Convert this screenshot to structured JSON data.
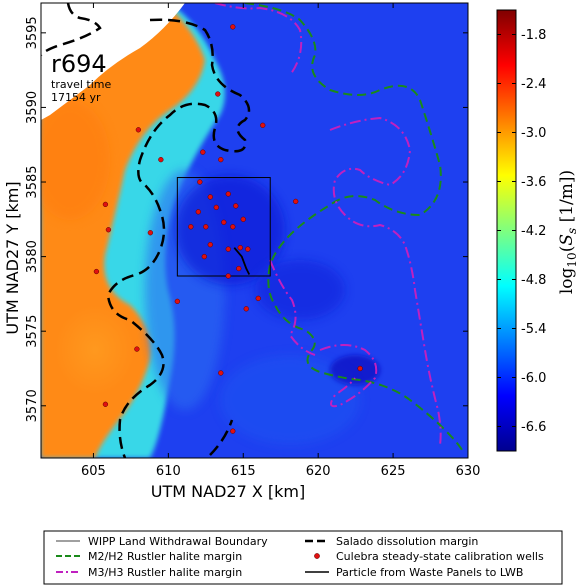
{
  "chart_data": {
    "type": "heatmap",
    "title": "",
    "xlabel": "UTM NAD27 X [km]",
    "ylabel": "UTM NAD27 Y [km]",
    "xlim": [
      601.5,
      630
    ],
    "ylim": [
      3566.5,
      3597
    ],
    "xticks": [
      "605",
      "610",
      "615",
      "620",
      "625",
      "630"
    ],
    "yticks": [
      "3570",
      "3575",
      "3580",
      "3585",
      "3590",
      "3595"
    ],
    "colorbar": {
      "label": "log10(Ss [1/m])",
      "range": [
        -6.9,
        -1.5
      ],
      "ticks": [
        "-1.8",
        "-2.4",
        "-3.0",
        "-3.6",
        "-4.2",
        "-4.8",
        "-5.4",
        "-6.0",
        "-6.6"
      ],
      "colormap": "jet"
    },
    "annotation": {
      "realization": "r694",
      "travel_time_label": "travel time",
      "travel_time_value": "17154 yr"
    },
    "wipp_boundary_box": {
      "x": [
        610.6,
        616.8
      ],
      "y": [
        3578.7,
        3585.3
      ]
    },
    "calibration_wells": [
      [
        608.0,
        3588.5
      ],
      [
        609.5,
        3586.5
      ],
      [
        605.8,
        3583.5
      ],
      [
        606.0,
        3581.8
      ],
      [
        608.8,
        3581.6
      ],
      [
        605.2,
        3579.0
      ],
      [
        607.9,
        3573.8
      ],
      [
        605.8,
        3570.1
      ],
      [
        610.6,
        3577.0
      ],
      [
        612.1,
        3585.0
      ],
      [
        612.8,
        3584.0
      ],
      [
        613.2,
        3583.3
      ],
      [
        614.0,
        3584.2
      ],
      [
        614.5,
        3583.4
      ],
      [
        612.0,
        3583.0
      ],
      [
        611.5,
        3582.0
      ],
      [
        612.5,
        3582.0
      ],
      [
        613.7,
        3582.3
      ],
      [
        614.3,
        3582.0
      ],
      [
        615.0,
        3582.5
      ],
      [
        612.8,
        3580.8
      ],
      [
        614.0,
        3580.5
      ],
      [
        614.8,
        3580.6
      ],
      [
        615.3,
        3580.5
      ],
      [
        614.7,
        3579.2
      ],
      [
        614.0,
        3578.7
      ],
      [
        612.4,
        3580.0
      ],
      [
        616.0,
        3577.2
      ],
      [
        615.2,
        3576.5
      ],
      [
        613.5,
        3572.2
      ],
      [
        614.3,
        3568.3
      ],
      [
        618.5,
        3583.7
      ],
      [
        616.3,
        3588.8
      ],
      [
        613.3,
        3590.9
      ],
      [
        614.3,
        3595.4
      ],
      [
        612.3,
        3587.0
      ],
      [
        613.5,
        3586.5
      ],
      [
        622.8,
        3572.5
      ]
    ],
    "particle_path": [
      [
        614.4,
        3580.6
      ],
      [
        614.9,
        3580.0
      ],
      [
        615.2,
        3579.2
      ],
      [
        615.4,
        3578.8
      ]
    ]
  },
  "legend": {
    "items": [
      {
        "label": "WIPP Land Withdrawal Boundary",
        "color": "#000000",
        "style": "solid-thin"
      },
      {
        "label": "Salado dissolution margin",
        "color": "#000000",
        "style": "dashed-thick"
      },
      {
        "label": "M2/H2 Rustler halite margin",
        "color": "#1a8a1a",
        "style": "dashed"
      },
      {
        "label": "Culebra steady-state calibration wells",
        "color": "#e01010",
        "style": "dot"
      },
      {
        "label": "M3/H3 Rustler halite margin",
        "color": "#c020c0",
        "style": "dashdot"
      },
      {
        "label": "Particle from Waste Panels to LWB",
        "color": "#000000",
        "style": "solid"
      }
    ]
  },
  "colors": {
    "dissolution": "#000000",
    "m2h2": "#1a8a1a",
    "m3h3": "#c020c0",
    "well": "#e01010"
  }
}
